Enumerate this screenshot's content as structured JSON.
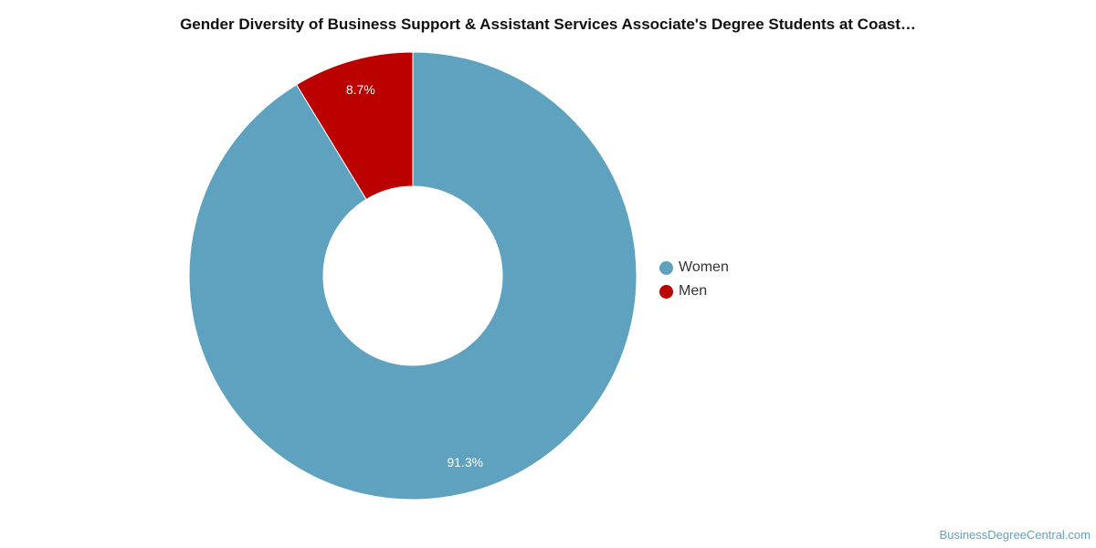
{
  "chart_data": {
    "type": "pie",
    "title": "Gender Diversity of Business Support & Assistant Services Associate's Degree Students at Coast…",
    "categories": [
      "Women",
      "Men"
    ],
    "values": [
      91.3,
      8.7
    ],
    "labels": [
      "91.3%",
      "8.7%"
    ],
    "colors": [
      "#5ea2bf",
      "#bb0000"
    ],
    "donut": true,
    "legend_position": "right"
  },
  "legend": {
    "items": [
      {
        "label": "Women",
        "color": "#5ea2bf"
      },
      {
        "label": "Men",
        "color": "#bb0000"
      }
    ]
  },
  "watermark": "BusinessDegreeCentral.com"
}
